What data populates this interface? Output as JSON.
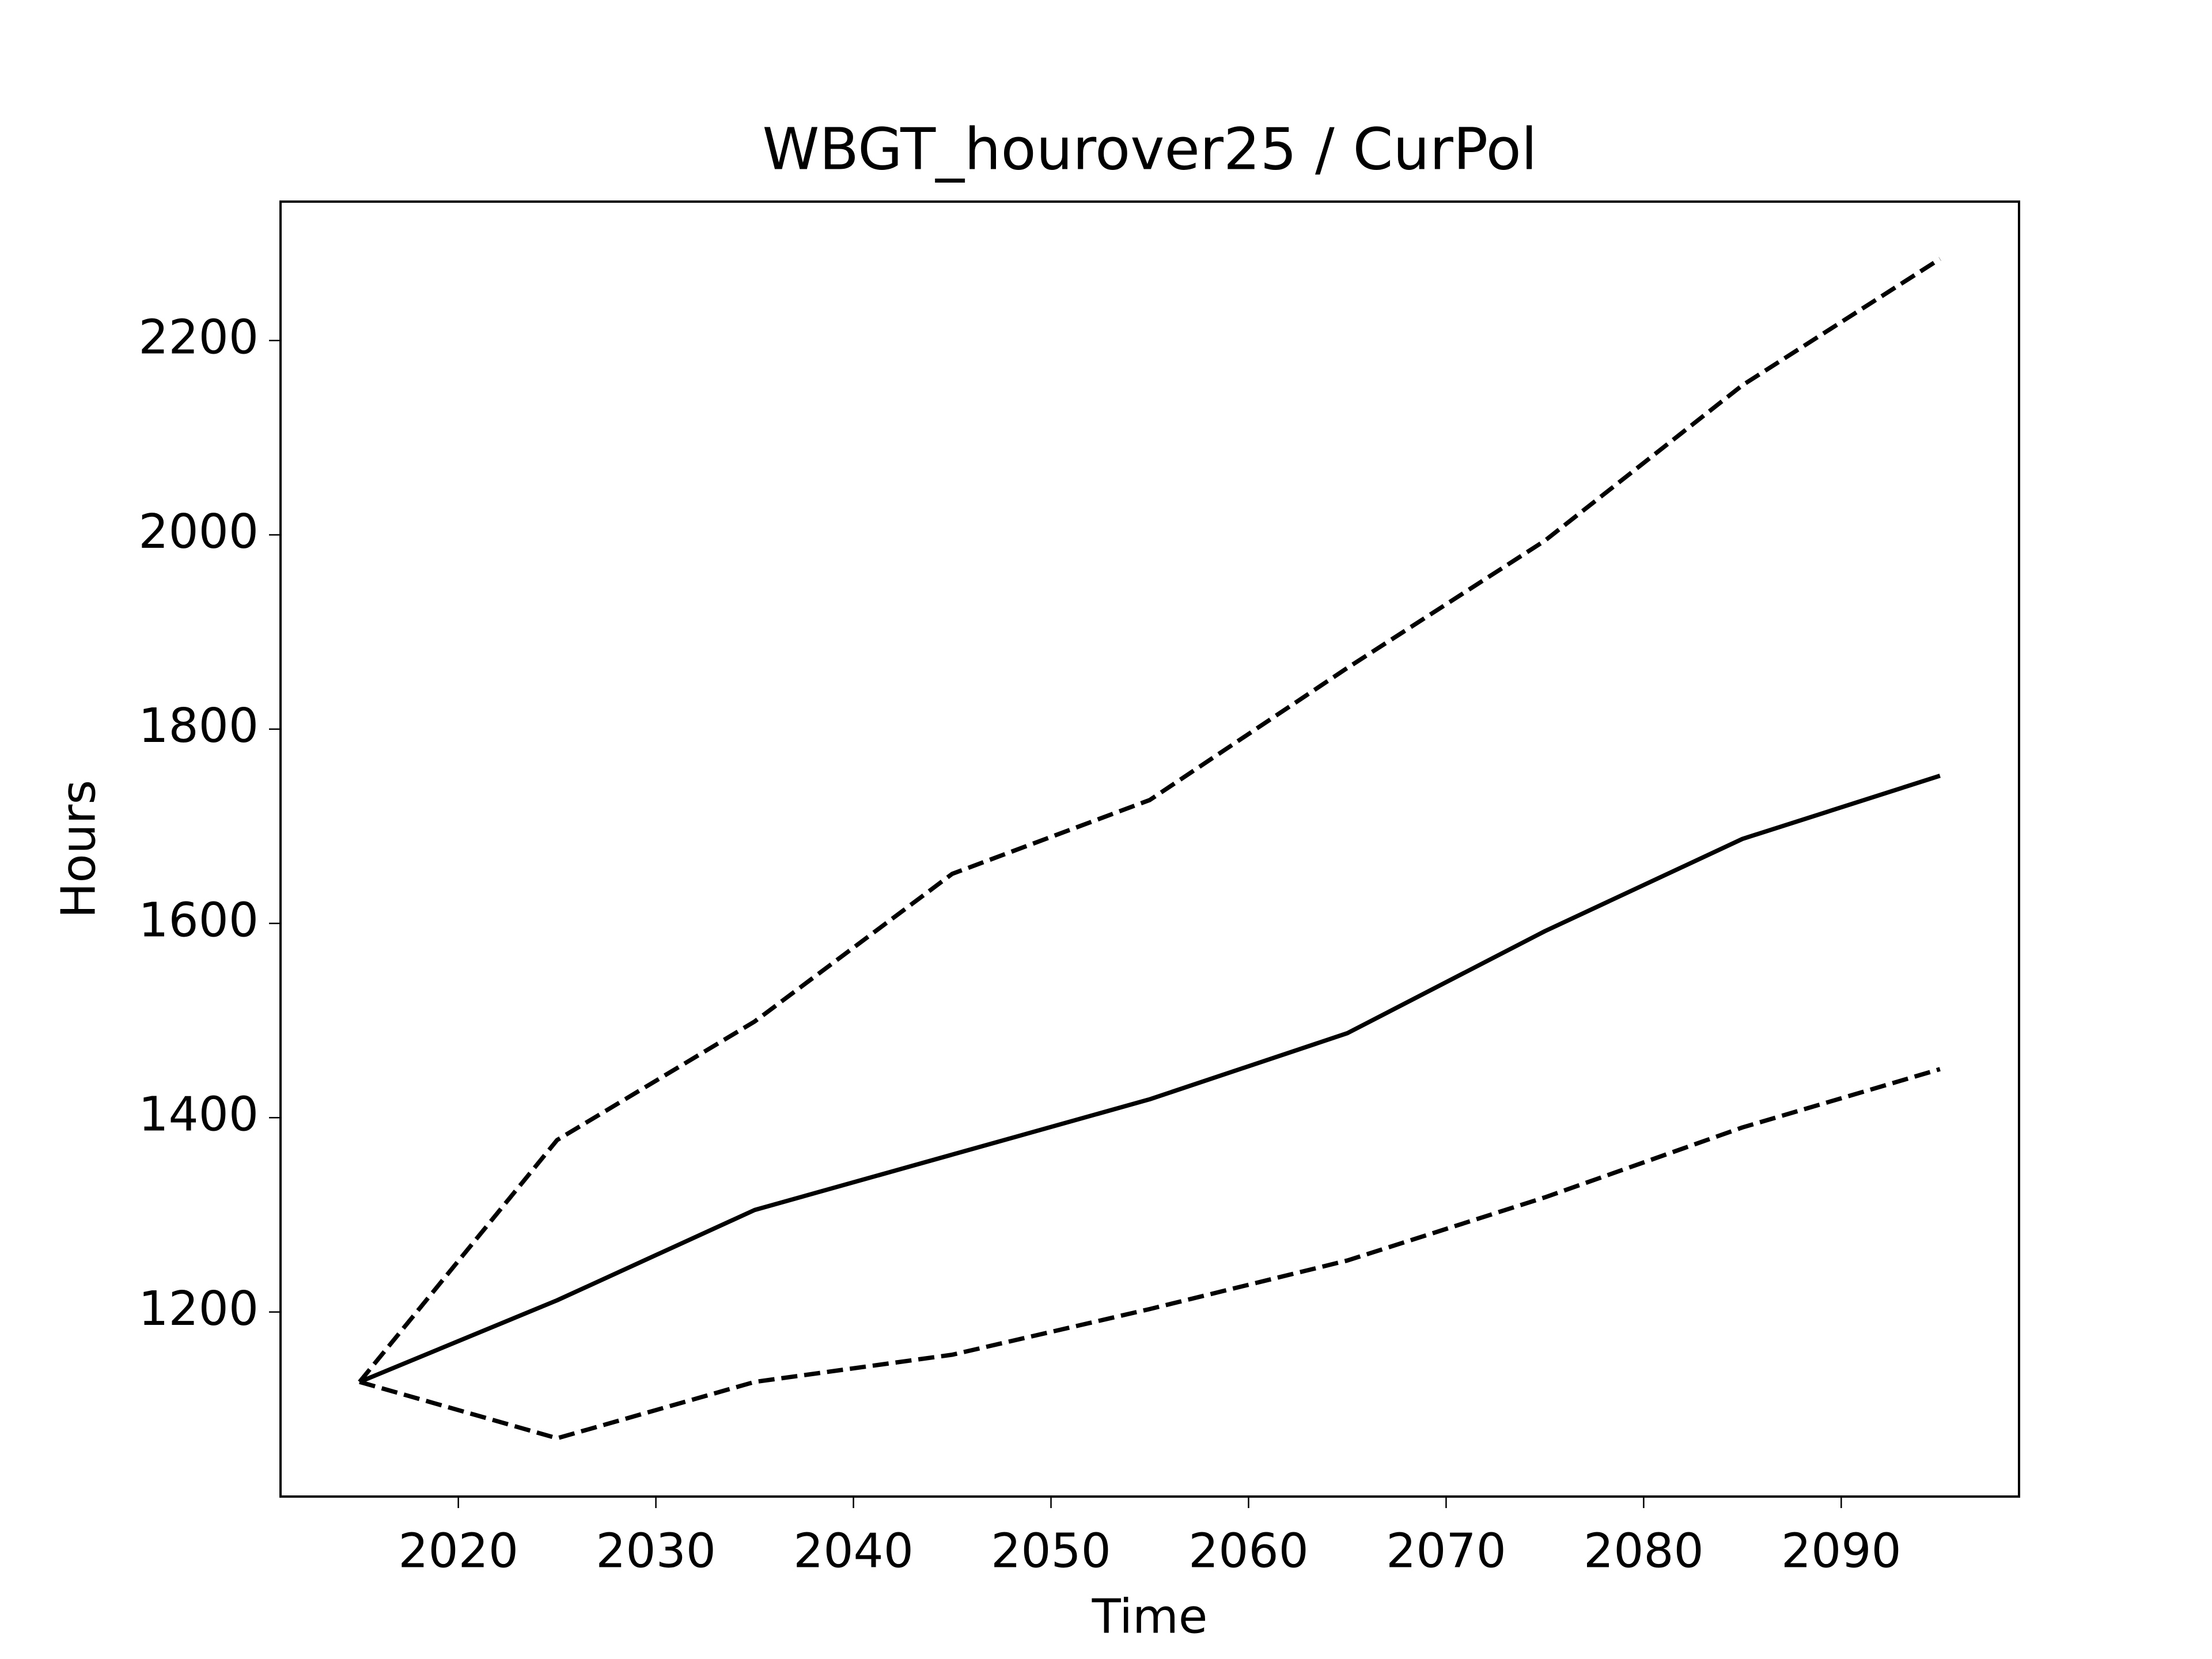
{
  "chart_data": {
    "type": "line",
    "title": "WBGT_hourover25 / CurPol",
    "x_label": "Time",
    "y_label": "Hours",
    "x": [
      2015,
      2025,
      2035,
      2045,
      2055,
      2065,
      2075,
      2085,
      2095
    ],
    "series": [
      {
        "color": "#000000",
        "dashed": false,
        "values": [
          1128,
          1212,
          1305,
          1362,
          1419,
          1487,
          1592,
          1687,
          1752
        ]
      },
      {
        "color": "#000000",
        "dashed": true,
        "values": [
          1128,
          1377,
          1499,
          1651,
          1727,
          1863,
          1994,
          2154,
          2284
        ]
      },
      {
        "color": "#000000",
        "dashed": true,
        "values": [
          1128,
          1070,
          1128,
          1156,
          1203,
          1253,
          1318,
          1390,
          1450
        ]
      }
    ],
    "xlim": [
      2011,
      2099
    ],
    "ylim": [
      1010,
      2343
    ],
    "xticks": [
      2020,
      2030,
      2040,
      2050,
      2060,
      2070,
      2080,
      2090
    ],
    "yticks": [
      1200,
      1400,
      1600,
      1800,
      2000,
      2200
    ],
    "grid": false
  }
}
